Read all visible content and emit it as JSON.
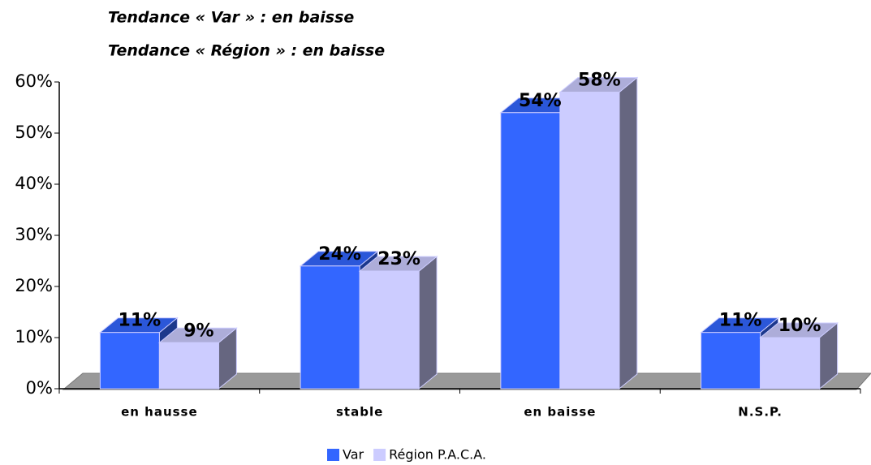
{
  "chart_data": {
    "type": "bar3d",
    "title": "Tendance « Var » : en baisse",
    "subtitle": "Tendance « Région » : en baisse",
    "categories": [
      "en hausse",
      "stable",
      "en baisse",
      "N.S.P."
    ],
    "series": [
      {
        "name": "Var",
        "color": "#3366ff",
        "values": [
          11,
          24,
          54,
          11
        ],
        "value_labels": [
          "11%",
          "24%",
          "54%",
          "11%"
        ]
      },
      {
        "name": "Région P.A.C.A.",
        "color": "#ccccff",
        "values": [
          9,
          23,
          58,
          10
        ],
        "value_labels": [
          "9%",
          "23%",
          "58%",
          "10%"
        ]
      }
    ],
    "ylim": [
      0,
      60
    ],
    "yticks": [
      {
        "value": 0,
        "label": "0%"
      },
      {
        "value": 10,
        "label": "10%"
      },
      {
        "value": 20,
        "label": "20%"
      },
      {
        "value": 30,
        "label": "30%"
      },
      {
        "value": 40,
        "label": "40%"
      },
      {
        "value": 50,
        "label": "50%"
      },
      {
        "value": 60,
        "label": "60%"
      }
    ],
    "legend": "bottom"
  }
}
